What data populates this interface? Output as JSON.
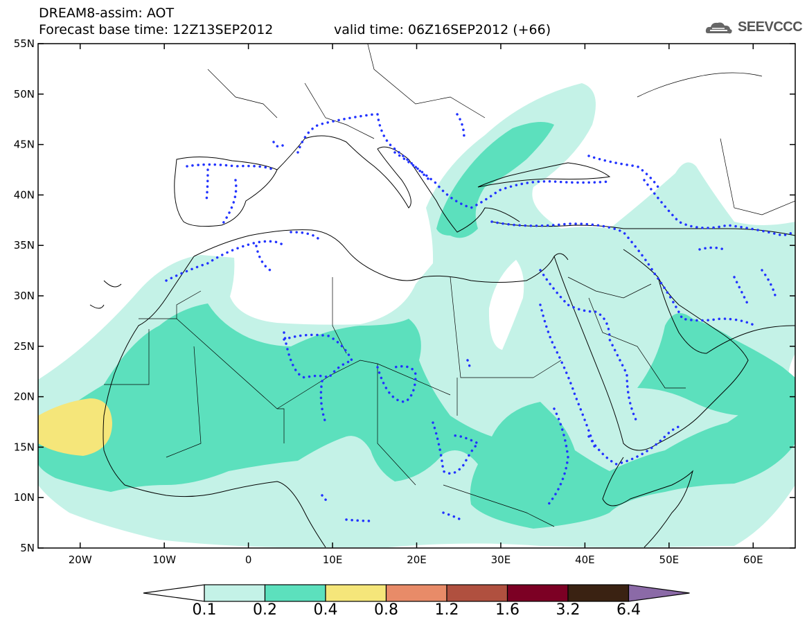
{
  "header": {
    "title": "DREAM8-assim: AOT",
    "base_time": "Forecast base time: 12Z13SEP2012",
    "valid_time": "valid time: 06Z16SEP2012 (+66)",
    "logo_text": "SEEVCCC"
  },
  "axes": {
    "lat_labels": [
      "55N",
      "50N",
      "45N",
      "40N",
      "35N",
      "30N",
      "25N",
      "20N",
      "15N",
      "10N",
      "5N"
    ],
    "lat_values": [
      55,
      50,
      45,
      40,
      35,
      30,
      25,
      20,
      15,
      10,
      5
    ],
    "lon_labels": [
      "20W",
      "10W",
      "0",
      "10E",
      "20E",
      "30E",
      "40E",
      "50E",
      "60E"
    ],
    "lon_values": [
      -20,
      -10,
      0,
      10,
      20,
      30,
      40,
      50,
      60
    ],
    "lon_range": [
      -25,
      65
    ],
    "lat_range": [
      5,
      55
    ]
  },
  "colorbar": {
    "labels": [
      "0.1",
      "0.2",
      "0.4",
      "0.8",
      "1.2",
      "1.6",
      "3.2",
      "6.4"
    ],
    "colors": [
      "#ffffff",
      "#c4f2e7",
      "#5ce0bd",
      "#f5e67a",
      "#e88b68",
      "#b0503f",
      "#7c0024",
      "#3a2212",
      "#8b6aa7"
    ]
  },
  "fill_colors": {
    "light": "#c4f2e7",
    "mid": "#5ce0bd",
    "high": "#f5e67a",
    "dots": "#2233ff"
  }
}
